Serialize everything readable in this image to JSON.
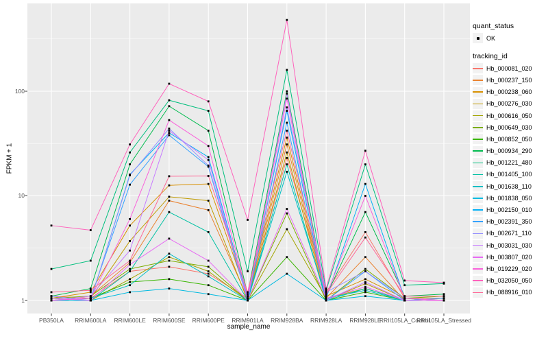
{
  "figure": {
    "background": "#FFFFFF",
    "panel_background": "#EBEBEB",
    "gridline_color": "#FFFFFF",
    "axis_text_color": "#4D4D4D",
    "point_color": "#000000"
  },
  "chart_data": {
    "type": "line",
    "title": "",
    "xlabel": "sample_name",
    "ylabel": "FPKM + 1",
    "y_scale": "log10",
    "y_ticks": [
      "1",
      "10",
      "100"
    ],
    "ylim": [
      1,
      550
    ],
    "grid": true,
    "legend_position": "right",
    "marker": "black point at every vertex",
    "categories": [
      "PB350LA",
      "RRIM600LA",
      "RRIM600LE",
      "RRIM600SE",
      "RRIM600PE",
      "RRIM901LA",
      "RRIM928BA",
      "RRIM928LA",
      "RRIM928LE",
      "RRII105LA_Control",
      "RRII105LA_Stressed"
    ],
    "series": [
      {
        "name": "Hb_000081_020",
        "color": "#F8766D",
        "values": [
          1.1,
          1.05,
          1.9,
          2.1,
          1.8,
          1.05,
          23,
          1.2,
          4.5,
          1.05,
          1.05
        ]
      },
      {
        "name": "Hb_000237_150",
        "color": "#EA8331",
        "values": [
          1.0,
          1.1,
          2.3,
          9.0,
          7.3,
          1.05,
          31,
          1.05,
          2.6,
          1.0,
          1.0
        ]
      },
      {
        "name": "Hb_000238_060",
        "color": "#D89000",
        "values": [
          1.05,
          1.2,
          5.2,
          12.6,
          13.0,
          1.1,
          36,
          1.1,
          1.6,
          1.05,
          1.0
        ]
      },
      {
        "name": "Hb_000276_030",
        "color": "#C09B00",
        "values": [
          1.0,
          1.05,
          3.7,
          9.8,
          9.0,
          1.0,
          26,
          1.0,
          1.45,
          1.0,
          1.05
        ]
      },
      {
        "name": "Hb_000616_050",
        "color": "#A3A500",
        "values": [
          1.0,
          1.0,
          1.6,
          2.6,
          1.9,
          1.0,
          4.8,
          1.05,
          1.3,
          1.0,
          1.0
        ]
      },
      {
        "name": "Hb_000649_030",
        "color": "#7CAE00",
        "values": [
          1.05,
          1.1,
          2.0,
          2.4,
          2.1,
          1.0,
          6.8,
          1.0,
          2.0,
          1.05,
          1.1
        ]
      },
      {
        "name": "Hb_000852_050",
        "color": "#39B600",
        "values": [
          1.0,
          1.05,
          1.5,
          1.6,
          1.4,
          1.0,
          2.6,
          1.0,
          1.2,
          1.0,
          1.0
        ]
      },
      {
        "name": "Hb_000934_290",
        "color": "#00BB4E",
        "values": [
          1.1,
          1.3,
          20,
          72,
          42,
          1.15,
          100,
          1.1,
          7.0,
          1.1,
          1.15
        ]
      },
      {
        "name": "Hb_001221_480",
        "color": "#00BF7D",
        "values": [
          2.0,
          2.4,
          26,
          82,
          65,
          1.9,
          160,
          1.25,
          20,
          1.4,
          1.45
        ]
      },
      {
        "name": "Hb_001405_100",
        "color": "#00C1A3",
        "values": [
          1.0,
          1.0,
          1.9,
          7.0,
          4.5,
          1.0,
          20,
          1.0,
          1.3,
          1.0,
          1.0
        ]
      },
      {
        "name": "Hb_001638_110",
        "color": "#00BFC4",
        "values": [
          1.0,
          1.05,
          1.4,
          2.8,
          1.7,
          1.0,
          17,
          1.05,
          1.25,
          1.0,
          1.0
        ]
      },
      {
        "name": "Hb_001838_050",
        "color": "#00BAE0",
        "values": [
          1.0,
          1.0,
          1.2,
          1.3,
          1.15,
          1.0,
          1.8,
          1.0,
          1.1,
          1.0,
          1.0
        ]
      },
      {
        "name": "Hb_002150_010",
        "color": "#00B0F6",
        "values": [
          1.05,
          1.0,
          16,
          40,
          23.5,
          1.05,
          65,
          1.05,
          13,
          1.05,
          1.0
        ]
      },
      {
        "name": "Hb_002391_350",
        "color": "#35A2FF",
        "values": [
          1.0,
          1.05,
          12.8,
          38,
          19,
          1.0,
          50,
          1.0,
          1.9,
          1.0,
          1.05
        ]
      },
      {
        "name": "Hb_002671_110",
        "color": "#9590FF",
        "values": [
          1.1,
          1.0,
          15.7,
          44,
          19.5,
          1.05,
          70,
          1.2,
          1.9,
          1.05,
          1.0
        ]
      },
      {
        "name": "Hb_003031_030",
        "color": "#C77CFF",
        "values": [
          1.0,
          1.1,
          3.0,
          42,
          22,
          1.0,
          95,
          1.0,
          1.5,
          1.0,
          1.0
        ]
      },
      {
        "name": "Hb_003807_020",
        "color": "#E76BF3",
        "values": [
          1.05,
          1.0,
          2.2,
          3.9,
          2.4,
          1.0,
          7.5,
          1.05,
          1.35,
          1.0,
          1.0
        ]
      },
      {
        "name": "Hb_019229_020",
        "color": "#FA62DB",
        "values": [
          1.0,
          1.05,
          6.0,
          53,
          30,
          1.1,
          85,
          1.1,
          10,
          1.05,
          1.0
        ]
      },
      {
        "name": "Hb_032050_050",
        "color": "#FF62BC",
        "values": [
          5.2,
          4.7,
          31,
          118,
          80,
          5.9,
          480,
          1.3,
          27,
          1.55,
          1.48
        ]
      },
      {
        "name": "Hb_088916_010",
        "color": "#FF6A98",
        "values": [
          1.2,
          1.25,
          2.4,
          15.4,
          15.5,
          1.2,
          42,
          1.15,
          4.0,
          1.1,
          1.1
        ]
      }
    ]
  },
  "legend": {
    "quant_status": {
      "title": "quant_status",
      "items": [
        {
          "label": "OK",
          "marker": "point",
          "color": "#000000"
        }
      ]
    },
    "tracking_id": {
      "title": "tracking_id"
    }
  }
}
